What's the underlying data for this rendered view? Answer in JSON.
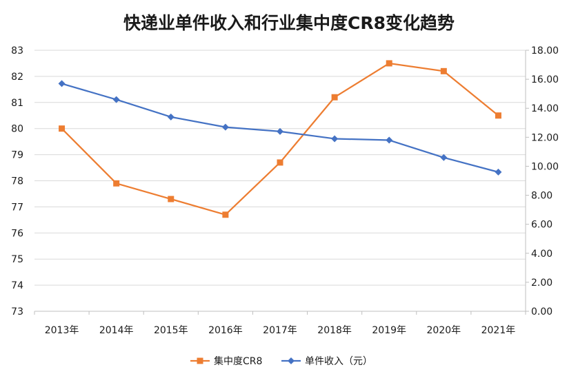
{
  "chart_data": {
    "type": "line",
    "title": "快递业单件收入和行业集中度CR8变化趋势",
    "categories": [
      "2013年",
      "2014年",
      "2015年",
      "2016年",
      "2017年",
      "2018年",
      "2019年",
      "2020年",
      "2021年"
    ],
    "y_left": {
      "range": [
        73,
        83
      ],
      "ticks": [
        "73",
        "74",
        "75",
        "76",
        "77",
        "78",
        "79",
        "80",
        "81",
        "82",
        "83"
      ]
    },
    "y_right": {
      "range": [
        0,
        18
      ],
      "ticks": [
        "0.00",
        "2.00",
        "4.00",
        "6.00",
        "8.00",
        "10.00",
        "12.00",
        "14.00",
        "16.00",
        "18.00"
      ]
    },
    "series": [
      {
        "name": "集中度CR8",
        "axis": "left",
        "color": "#ED7D31",
        "marker": "square",
        "values": [
          80.0,
          77.9,
          77.3,
          76.7,
          78.7,
          81.2,
          82.5,
          82.2,
          80.5
        ]
      },
      {
        "name": "单件收入（元）",
        "axis": "right",
        "color": "#4472C4",
        "marker": "diamond",
        "values": [
          15.7,
          14.6,
          13.4,
          12.7,
          12.4,
          11.9,
          11.8,
          10.6,
          9.6
        ]
      }
    ],
    "grid": true,
    "legend_position": "bottom"
  }
}
